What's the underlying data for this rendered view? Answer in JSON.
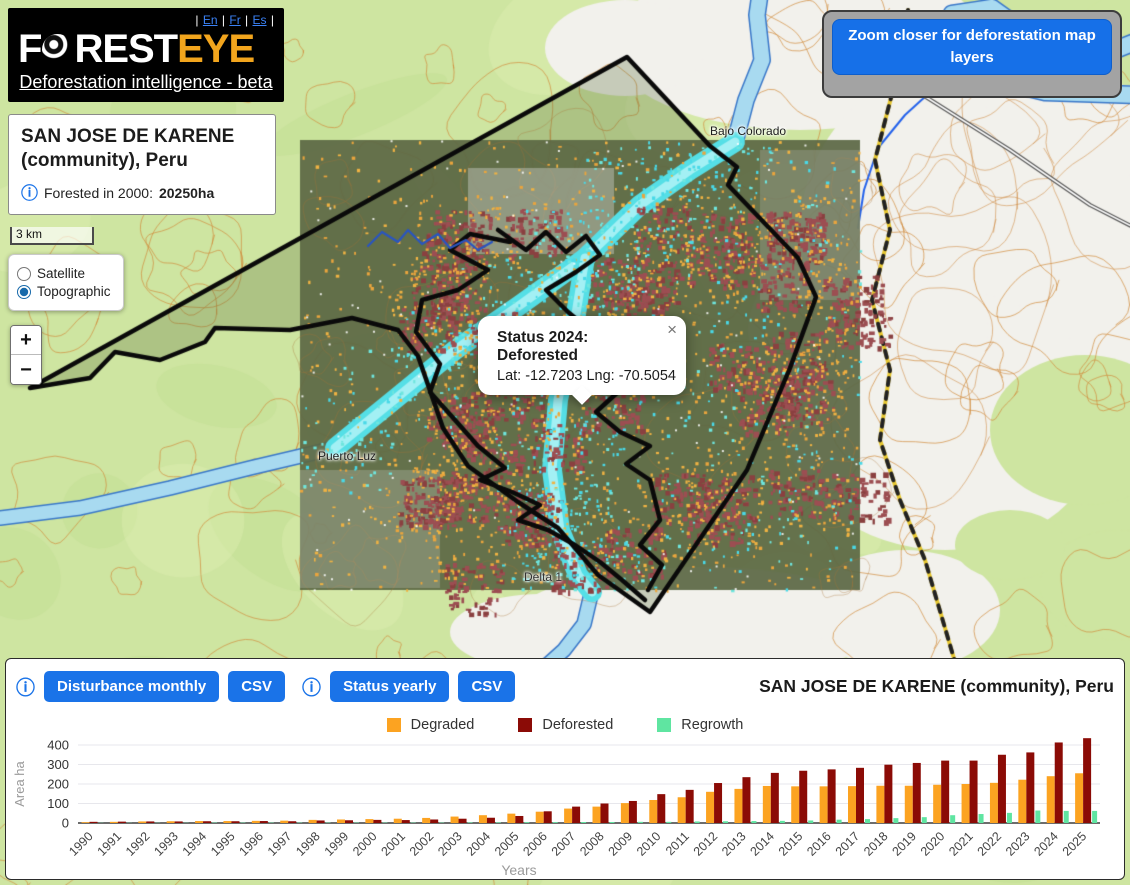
{
  "header": {
    "logo": {
      "separator": "|",
      "languages": [
        "En",
        "Fr",
        "Es"
      ],
      "title_part1": "F",
      "title_part2": "REST",
      "title_part3": "EYE",
      "subtitle": "Deforestation intelligence - beta"
    },
    "info_card": {
      "title": "SAN JOSE DE KARENE (community), Peru",
      "forested_label": "Forested in 2000:",
      "forested_value": "20250ha"
    }
  },
  "icons": {
    "info": "ⓘ",
    "close": "×"
  },
  "map": {
    "zoom_banner": "Zoom closer for deforestation map layers",
    "scale_bar": "3 km",
    "zoom_in": "+",
    "zoom_out": "−",
    "base_layers": [
      {
        "label": "Satellite",
        "selected": false
      },
      {
        "label": "Topographic",
        "selected": true
      }
    ],
    "labels": [
      {
        "text": "Bajo Colorado"
      },
      {
        "text": "Puerto Luz"
      },
      {
        "text": "Delta 1"
      }
    ],
    "popup": {
      "title": "Status 2024: Deforested",
      "coords": "Lat: -12.7203 Lng: -70.5054"
    }
  },
  "panel": {
    "buttons": [
      {
        "label": "Disturbance monthly"
      },
      {
        "label": "CSV"
      },
      {
        "label": "Status yearly"
      },
      {
        "label": "CSV"
      }
    ],
    "title": "SAN JOSE DE KARENE (community), Peru"
  },
  "chart_data": {
    "type": "bar",
    "title": "SAN JOSE DE KARENE (community), Peru",
    "xlabel": "Years",
    "ylabel": "Area ha",
    "ylim": [
      0,
      400
    ],
    "yticks": [
      0,
      100,
      200,
      300,
      400
    ],
    "grid": true,
    "legend_position": "top",
    "categories": [
      1990,
      1991,
      1992,
      1993,
      1994,
      1995,
      1996,
      1997,
      1998,
      1999,
      2000,
      2001,
      2002,
      2003,
      2004,
      2005,
      2006,
      2007,
      2008,
      2009,
      2010,
      2011,
      2012,
      2013,
      2014,
      2015,
      2016,
      2017,
      2018,
      2019,
      2020,
      2021,
      2022,
      2023,
      2024,
      2025
    ],
    "series": [
      {
        "name": "Degraded",
        "color": "#FCA321",
        "values": [
          4,
          6,
          8,
          9,
          10,
          10,
          11,
          12,
          16,
          18,
          20,
          22,
          26,
          33,
          40,
          48,
          58,
          74,
          84,
          102,
          118,
          132,
          160,
          175,
          190,
          188,
          188,
          189,
          191,
          191,
          196,
          200,
          206,
          222,
          240,
          255
        ]
      },
      {
        "name": "Deforested",
        "color": "#8B0B06",
        "values": [
          6,
          7,
          8,
          8,
          9,
          9,
          10,
          9,
          13,
          14,
          16,
          15,
          18,
          22,
          27,
          36,
          60,
          84,
          100,
          113,
          148,
          170,
          205,
          235,
          257,
          268,
          275,
          283,
          299,
          308,
          320,
          320,
          350,
          362,
          413,
          435
        ]
      },
      {
        "name": "Regrowth",
        "color": "#5FE5A1",
        "values": [
          1,
          1,
          1,
          1,
          2,
          2,
          2,
          2,
          2,
          2,
          2,
          2,
          2,
          3,
          3,
          4,
          4,
          5,
          5,
          6,
          6,
          8,
          9,
          10,
          11,
          13,
          17,
          20,
          25,
          30,
          40,
          46,
          52,
          64,
          62,
          62
        ]
      }
    ]
  }
}
